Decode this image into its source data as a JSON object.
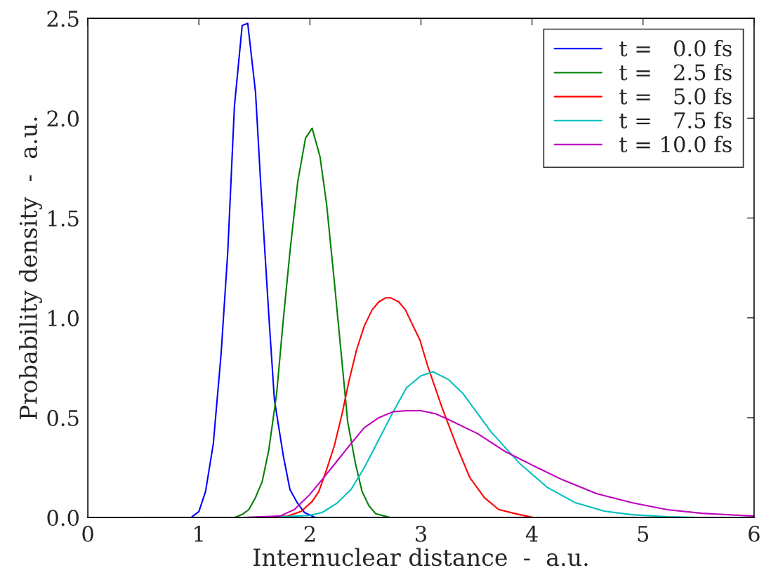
{
  "chart_data": {
    "type": "line",
    "xlabel": "Internuclear distance  -  a.u.",
    "ylabel": "Probability density  -  a.u.",
    "xlim": [
      0,
      6
    ],
    "xticks": [
      0,
      1,
      2,
      3,
      4,
      5,
      6
    ],
    "ylim": [
      0,
      2.5
    ],
    "yticks": [
      {
        "value": 0,
        "label": "0.0"
      },
      {
        "value": 0.5,
        "label": "0.5"
      },
      {
        "value": 1,
        "label": "1.0"
      },
      {
        "value": 1.5,
        "label": "1.5"
      },
      {
        "value": 2,
        "label": "2.0"
      },
      {
        "value": 2.5,
        "label": "2.5"
      }
    ],
    "legend": "top right",
    "grid": false,
    "marker": "none",
    "line_style": "solid",
    "series": [
      {
        "name": "t =   0.0 fs",
        "color": "#0000ff",
        "x": [
          0.5,
          0.93,
          1.0,
          1.06,
          1.13,
          1.2,
          1.26,
          1.32,
          1.39,
          1.44,
          1.51,
          1.56,
          1.63,
          1.68,
          1.76,
          1.82,
          1.89,
          1.95,
          2.05,
          6.0
        ],
        "values": [
          0,
          0,
          0.03,
          0.13,
          0.37,
          0.82,
          1.33,
          2.06,
          2.465,
          2.475,
          2.13,
          1.64,
          1.01,
          0.59,
          0.31,
          0.14,
          0.07,
          0.025,
          0,
          0
        ]
      },
      {
        "name": "t =   2.5 fs",
        "color": "#008000",
        "x": [
          0.5,
          1.32,
          1.39,
          1.45,
          1.51,
          1.57,
          1.63,
          1.7,
          1.76,
          1.82,
          1.89,
          1.96,
          2.02,
          2.09,
          2.15,
          2.22,
          2.28,
          2.34,
          2.41,
          2.47,
          2.53,
          2.59,
          2.72,
          6.0
        ],
        "values": [
          0,
          0,
          0.015,
          0.04,
          0.1,
          0.18,
          0.34,
          0.62,
          0.99,
          1.33,
          1.68,
          1.9,
          1.95,
          1.81,
          1.57,
          1.18,
          0.83,
          0.48,
          0.27,
          0.13,
          0.06,
          0.02,
          0,
          0
        ]
      },
      {
        "name": "t =   5.0 fs",
        "color": "#ff0000",
        "x": [
          0.5,
          1.5,
          1.8,
          1.92,
          2.02,
          2.08,
          2.15,
          2.22,
          2.29,
          2.35,
          2.42,
          2.49,
          2.56,
          2.62,
          2.68,
          2.73,
          2.8,
          2.86,
          2.92,
          2.99,
          3.06,
          3.19,
          3.32,
          3.44,
          3.57,
          3.7,
          3.89,
          4.01,
          6.0
        ],
        "values": [
          0,
          0,
          0.007,
          0.03,
          0.08,
          0.13,
          0.24,
          0.36,
          0.52,
          0.68,
          0.84,
          0.96,
          1.04,
          1.08,
          1.1,
          1.1,
          1.08,
          1.04,
          0.97,
          0.89,
          0.76,
          0.55,
          0.36,
          0.2,
          0.1,
          0.04,
          0.014,
          0,
          0
        ]
      },
      {
        "name": "t =   7.5 fs",
        "color": "#00bfbf",
        "x": [
          0.5,
          1.6,
          1.99,
          2.11,
          2.24,
          2.37,
          2.49,
          2.62,
          2.75,
          2.87,
          3.0,
          3.11,
          3.25,
          3.38,
          3.63,
          3.89,
          4.14,
          4.39,
          4.65,
          4.9,
          5.22,
          5.5,
          6.0
        ],
        "values": [
          0,
          0,
          0.01,
          0.025,
          0.07,
          0.14,
          0.25,
          0.39,
          0.53,
          0.65,
          0.71,
          0.73,
          0.69,
          0.62,
          0.43,
          0.27,
          0.15,
          0.074,
          0.032,
          0.014,
          0.004,
          0,
          0
        ]
      },
      {
        "name": "t = 10.0 fs",
        "color": "#bf00bf",
        "x": [
          0.5,
          1.4,
          1.73,
          1.86,
          1.99,
          2.11,
          2.24,
          2.37,
          2.49,
          2.62,
          2.75,
          2.87,
          3.0,
          3.13,
          3.25,
          3.51,
          3.76,
          4.01,
          4.27,
          4.58,
          4.9,
          5.22,
          5.53,
          6.0
        ],
        "values": [
          0,
          0,
          0.007,
          0.04,
          0.11,
          0.19,
          0.28,
          0.37,
          0.45,
          0.5,
          0.53,
          0.535,
          0.535,
          0.52,
          0.49,
          0.42,
          0.33,
          0.26,
          0.19,
          0.12,
          0.074,
          0.039,
          0.021,
          0.007
        ]
      }
    ]
  }
}
